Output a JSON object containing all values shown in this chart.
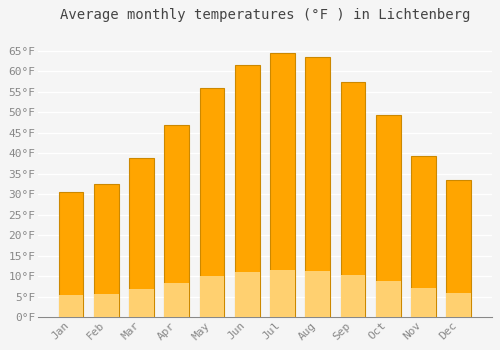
{
  "title": "Average monthly temperatures (°F ) in Lichtenberg",
  "months": [
    "Jan",
    "Feb",
    "Mar",
    "Apr",
    "May",
    "Jun",
    "Jul",
    "Aug",
    "Sep",
    "Oct",
    "Nov",
    "Dec"
  ],
  "values": [
    30.5,
    32.5,
    39.0,
    47.0,
    56.0,
    61.5,
    64.5,
    63.5,
    57.5,
    49.5,
    39.5,
    33.5
  ],
  "bar_color": "#FFA500",
  "bar_edge_color": "#CC8800",
  "bar_gradient_light": "#FFD070",
  "ylim": [
    0,
    70
  ],
  "yticks": [
    0,
    5,
    10,
    15,
    20,
    25,
    30,
    35,
    40,
    45,
    50,
    55,
    60,
    65
  ],
  "ytick_labels": [
    "0°F",
    "5°F",
    "10°F",
    "15°F",
    "20°F",
    "25°F",
    "30°F",
    "35°F",
    "40°F",
    "45°F",
    "50°F",
    "55°F",
    "60°F",
    "65°F"
  ],
  "background_color": "#f5f5f5",
  "plot_bg_color": "#f5f5f5",
  "grid_color": "#ffffff",
  "title_fontsize": 10,
  "tick_fontsize": 8,
  "font_color": "#888888",
  "title_color": "#444444",
  "bar_width": 0.7
}
